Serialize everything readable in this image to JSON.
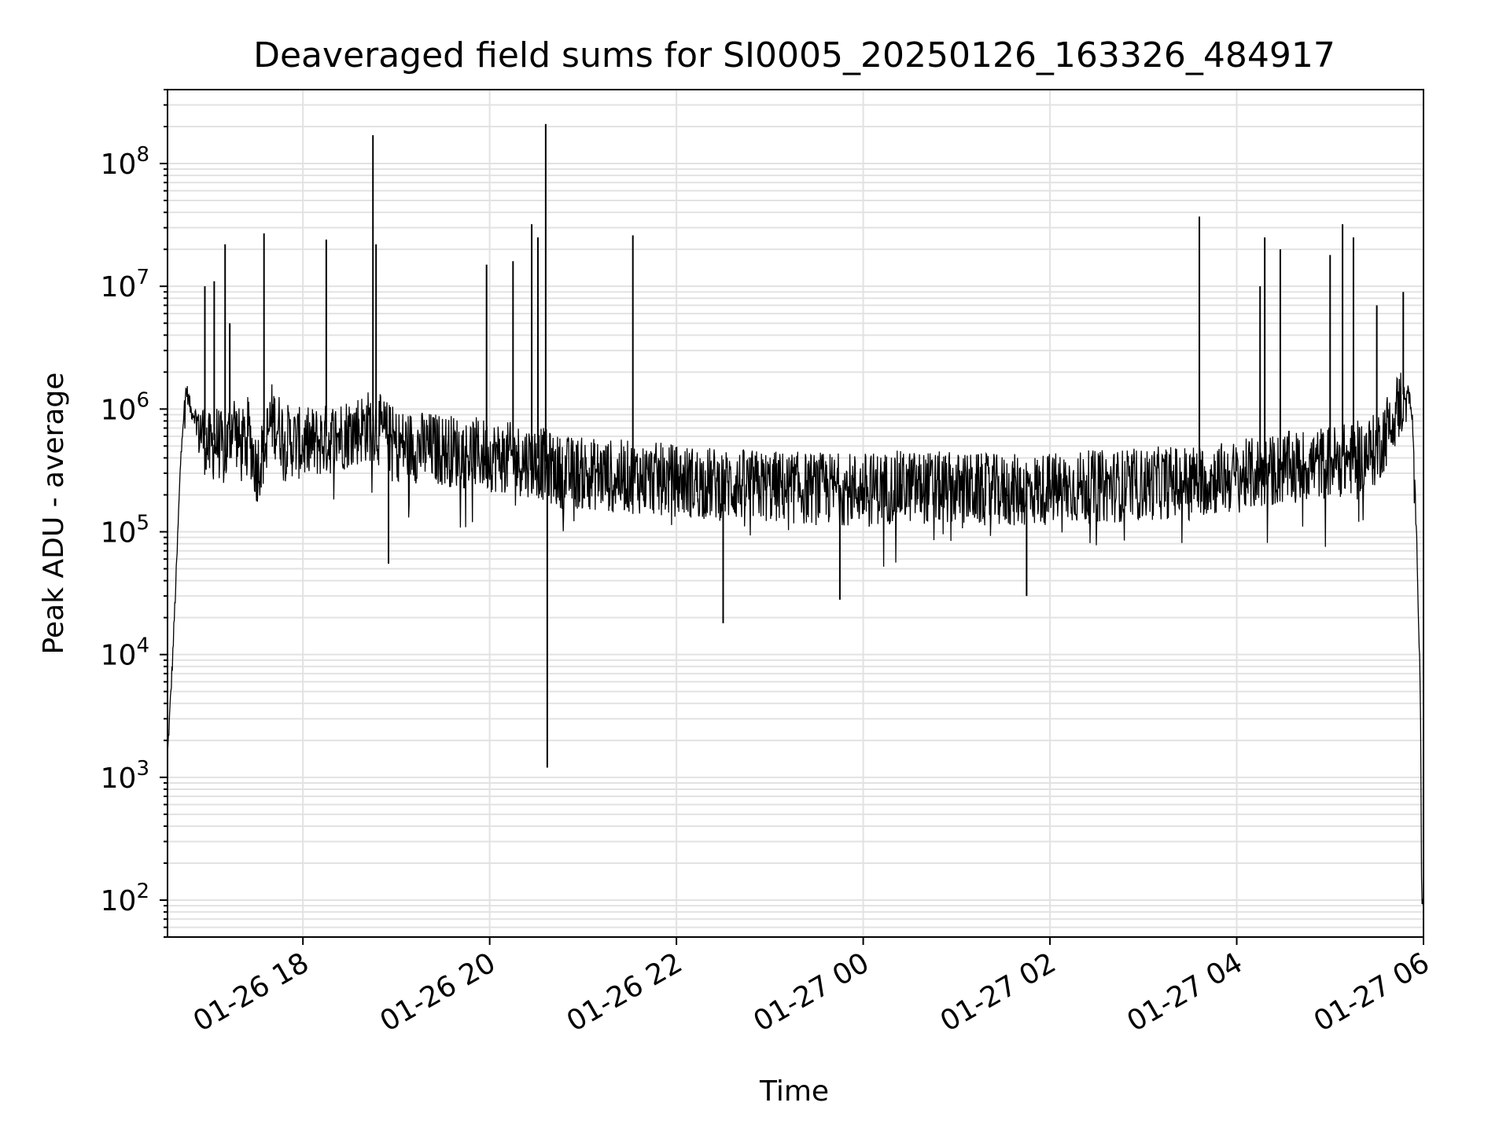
{
  "chart_data": {
    "type": "line",
    "title": "Deaveraged field sums for SI0005_20250126_163326_484917",
    "xlabel": "Time",
    "ylabel": "Peak ADU - average",
    "y_scale": "log",
    "ylim": [
      50,
      400000000
    ],
    "xlim": [
      "2025-01-26 16:33",
      "2025-01-27 06:00"
    ],
    "grid": true,
    "grid_minor_y": true,
    "line_color": "#000000",
    "x_ticks": [
      {
        "value": "2025-01-26 18:00",
        "label": "01-26 18"
      },
      {
        "value": "2025-01-26 20:00",
        "label": "01-26 20"
      },
      {
        "value": "2025-01-26 22:00",
        "label": "01-26 22"
      },
      {
        "value": "2025-01-27 00:00",
        "label": "01-27 00"
      },
      {
        "value": "2025-01-27 02:00",
        "label": "01-27 02"
      },
      {
        "value": "2025-01-27 04:00",
        "label": "01-27 04"
      },
      {
        "value": "2025-01-27 06:00",
        "label": "01-27 06"
      }
    ],
    "y_ticks": [
      {
        "value": 100,
        "label_base": "10",
        "label_exp": "2"
      },
      {
        "value": 1000,
        "label_base": "10",
        "label_exp": "3"
      },
      {
        "value": 10000,
        "label_base": "10",
        "label_exp": "4"
      },
      {
        "value": 100000,
        "label_base": "10",
        "label_exp": "5"
      },
      {
        "value": 1000000,
        "label_base": "10",
        "label_exp": "6"
      },
      {
        "value": 10000000,
        "label_base": "10",
        "label_exp": "7"
      },
      {
        "value": 100000000,
        "label_base": "10",
        "label_exp": "8"
      }
    ],
    "series": [
      {
        "x": [
          "2025-01-26 16:33",
          "2025-01-26 16:36",
          "2025-01-26 16:39",
          "2025-01-26 16:42",
          "2025-01-26 16:45",
          "2025-01-26 16:48",
          "2025-01-26 16:51",
          "2025-01-26 16:55",
          "2025-01-26 17:00",
          "2025-01-26 17:05",
          "2025-01-26 17:10",
          "2025-01-26 17:15",
          "2025-01-26 17:20",
          "2025-01-26 17:25",
          "2025-01-26 17:30",
          "2025-01-26 17:35",
          "2025-01-26 17:40",
          "2025-01-26 17:50",
          "2025-01-26 18:00",
          "2025-01-26 18:15",
          "2025-01-26 18:30",
          "2025-01-26 18:45",
          "2025-01-26 19:00",
          "2025-01-26 19:30",
          "2025-01-26 20:00",
          "2025-01-26 20:15",
          "2025-01-26 20:30",
          "2025-01-26 20:35",
          "2025-01-26 20:40",
          "2025-01-26 20:45",
          "2025-01-26 21:00",
          "2025-01-26 21:30",
          "2025-01-26 22:00",
          "2025-01-26 22:30",
          "2025-01-26 23:00",
          "2025-01-26 23:30",
          "2025-01-27 00:00",
          "2025-01-27 00:30",
          "2025-01-27 01:00",
          "2025-01-27 01:30",
          "2025-01-27 02:00",
          "2025-01-27 02:30",
          "2025-01-27 03:00",
          "2025-01-27 03:30",
          "2025-01-27 04:00",
          "2025-01-27 04:30",
          "2025-01-27 05:00",
          "2025-01-27 05:15",
          "2025-01-27 05:30",
          "2025-01-27 05:45",
          "2025-01-27 05:50",
          "2025-01-27 05:53",
          "2025-01-27 05:56",
          "2025-01-27 05:58",
          "2025-01-27 05:59"
        ],
        "y": [
          1500,
          8000,
          60000,
          600000,
          1500000,
          1000000,
          900000,
          700000,
          500000,
          600000,
          450000,
          900000,
          500000,
          700000,
          350000,
          500000,
          900000,
          600000,
          550000,
          600000,
          700000,
          800000,
          550000,
          500000,
          450000,
          420000,
          400000,
          380000,
          350000,
          330000,
          320000,
          300000,
          280000,
          260000,
          250000,
          240000,
          240000,
          250000,
          240000,
          230000,
          240000,
          250000,
          260000,
          280000,
          300000,
          350000,
          400000,
          420000,
          500000,
          1200000,
          1500000,
          800000,
          60000,
          5000,
          100
        ]
      }
    ],
    "spikes": [
      {
        "x": "2025-01-26 16:57",
        "y": 10000000
      },
      {
        "x": "2025-01-26 17:03",
        "y": 11000000
      },
      {
        "x": "2025-01-26 17:10",
        "y": 22000000
      },
      {
        "x": "2025-01-26 17:13",
        "y": 5000000
      },
      {
        "x": "2025-01-26 17:35",
        "y": 27000000
      },
      {
        "x": "2025-01-26 18:15",
        "y": 24000000
      },
      {
        "x": "2025-01-26 18:45",
        "y": 170000000
      },
      {
        "x": "2025-01-26 18:47",
        "y": 22000000
      },
      {
        "x": "2025-01-26 19:58",
        "y": 15000000
      },
      {
        "x": "2025-01-26 20:15",
        "y": 16000000
      },
      {
        "x": "2025-01-26 20:27",
        "y": 32000000
      },
      {
        "x": "2025-01-26 20:31",
        "y": 25000000
      },
      {
        "x": "2025-01-26 20:36",
        "y": 210000000
      },
      {
        "x": "2025-01-26 21:32",
        "y": 26000000
      },
      {
        "x": "2025-01-27 03:36",
        "y": 37000000
      },
      {
        "x": "2025-01-27 04:15",
        "y": 10000000
      },
      {
        "x": "2025-01-27 04:18",
        "y": 25000000
      },
      {
        "x": "2025-01-27 04:28",
        "y": 20000000
      },
      {
        "x": "2025-01-27 05:00",
        "y": 18000000
      },
      {
        "x": "2025-01-27 05:08",
        "y": 32000000
      },
      {
        "x": "2025-01-27 05:15",
        "y": 25000000
      },
      {
        "x": "2025-01-27 05:30",
        "y": 7000000
      },
      {
        "x": "2025-01-27 05:47",
        "y": 9000000
      }
    ],
    "dips": [
      {
        "x": "2025-01-26 18:55",
        "y": 55000
      },
      {
        "x": "2025-01-26 20:37",
        "y": 1200
      },
      {
        "x": "2025-01-26 22:30",
        "y": 18000
      },
      {
        "x": "2025-01-26 23:45",
        "y": 28000
      },
      {
        "x": "2025-01-27 01:45",
        "y": 30000
      }
    ]
  }
}
